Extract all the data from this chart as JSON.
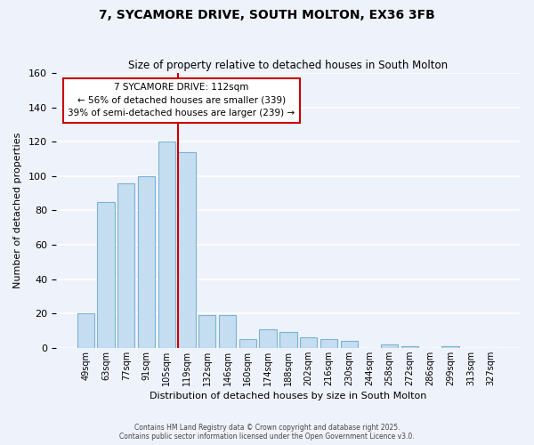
{
  "title": "7, SYCAMORE DRIVE, SOUTH MOLTON, EX36 3FB",
  "subtitle": "Size of property relative to detached houses in South Molton",
  "xlabel": "Distribution of detached houses by size in South Molton",
  "ylabel": "Number of detached properties",
  "bar_labels": [
    "49sqm",
    "63sqm",
    "77sqm",
    "91sqm",
    "105sqm",
    "119sqm",
    "132sqm",
    "146sqm",
    "160sqm",
    "174sqm",
    "188sqm",
    "202sqm",
    "216sqm",
    "230sqm",
    "244sqm",
    "258sqm",
    "272sqm",
    "286sqm",
    "299sqm",
    "313sqm",
    "327sqm"
  ],
  "bar_heights": [
    20,
    85,
    96,
    100,
    120,
    114,
    19,
    19,
    5,
    11,
    9,
    6,
    5,
    4,
    0,
    2,
    1,
    0,
    1,
    0,
    0
  ],
  "bar_color": "#c5ddf0",
  "bar_edge_color": "#7ab3d4",
  "vline_color": "#cc0000",
  "vline_x_index": 4.575,
  "annotation_line1": "7 SYCAMORE DRIVE: 112sqm",
  "annotation_line2": "← 56% of detached houses are smaller (339)",
  "annotation_line3": "39% of semi-detached houses are larger (239) →",
  "annotation_box_color": "#ffffff",
  "annotation_box_edge": "#cc0000",
  "footer": "Contains HM Land Registry data © Crown copyright and database right 2025.\nContains public sector information licensed under the Open Government Licence v3.0.",
  "ylim": [
    0,
    160
  ],
  "background_color": "#eef2fb",
  "grid_color": "#ffffff",
  "yticks": [
    0,
    20,
    40,
    60,
    80,
    100,
    120,
    140,
    160
  ]
}
